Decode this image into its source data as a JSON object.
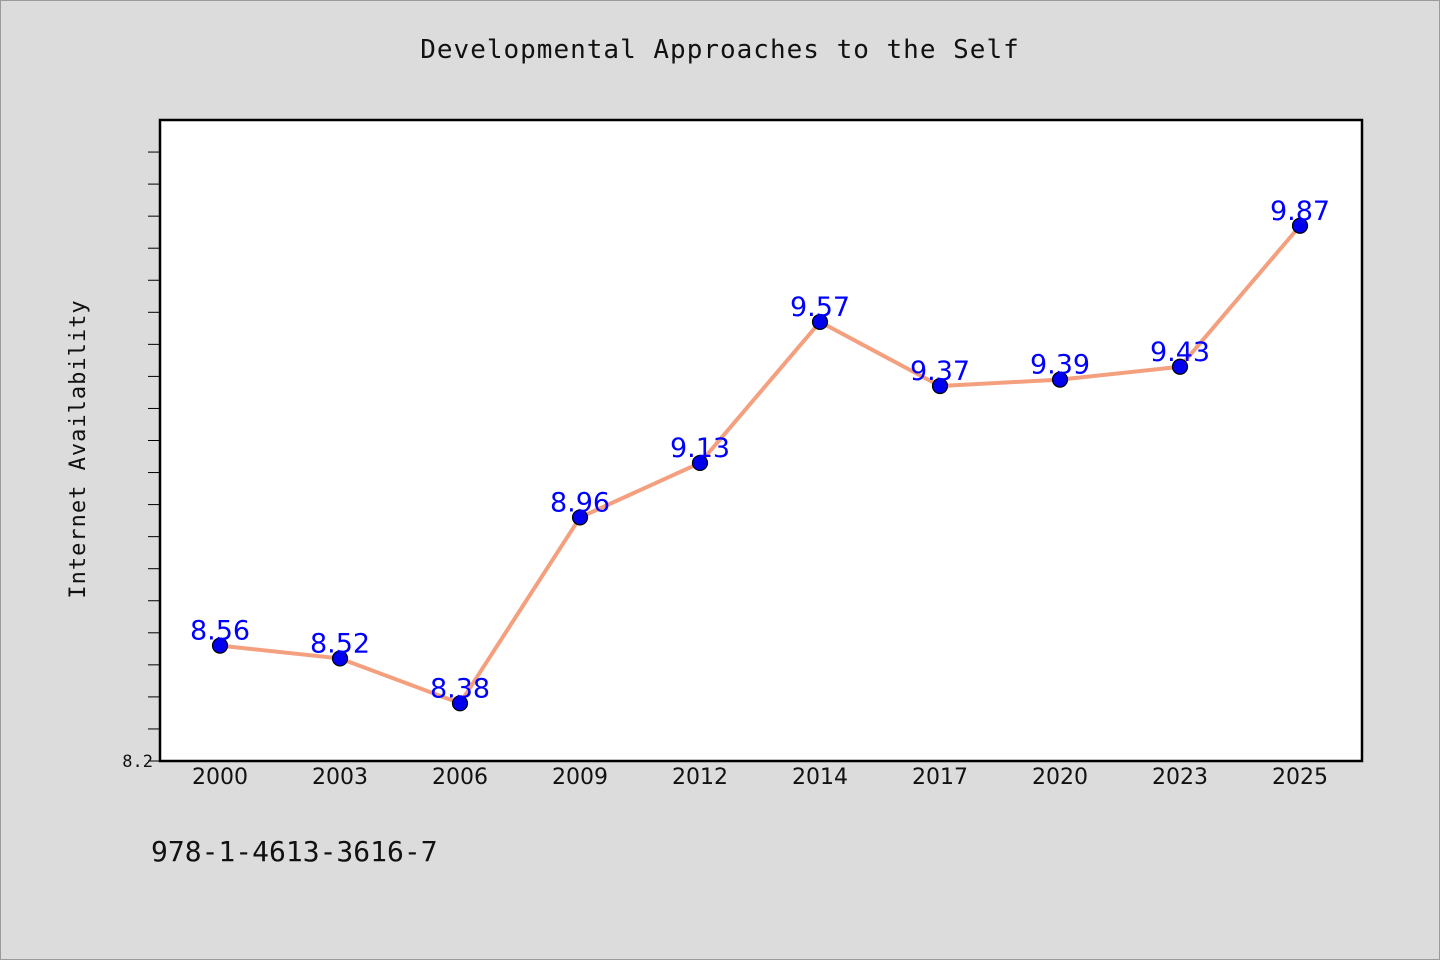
{
  "chart_data": {
    "type": "line",
    "title": "Developmental Approaches to the Self",
    "xlabel": "",
    "ylabel": "Internet Availability",
    "categories": [
      "2000",
      "2003",
      "2006",
      "2009",
      "2012",
      "2014",
      "2017",
      "2020",
      "2023",
      "2025"
    ],
    "values": [
      8.56,
      8.52,
      8.38,
      8.96,
      9.13,
      9.57,
      9.37,
      9.39,
      9.43,
      9.87
    ],
    "value_labels": [
      "8.56",
      "8.52",
      "8.38",
      "8.96",
      "9.13",
      "9.57",
      "9.37",
      "9.39",
      "9.43",
      "9.87"
    ],
    "ylim": [
      8.2,
      10.2
    ],
    "y_tick_label": "8.2",
    "grid": false,
    "legend": "none",
    "line_color": "#f4a07f",
    "marker_color": "#0000ee",
    "label_color": "#0000ff"
  },
  "footer": {
    "isbn": "978-1-4613-3616-7"
  }
}
